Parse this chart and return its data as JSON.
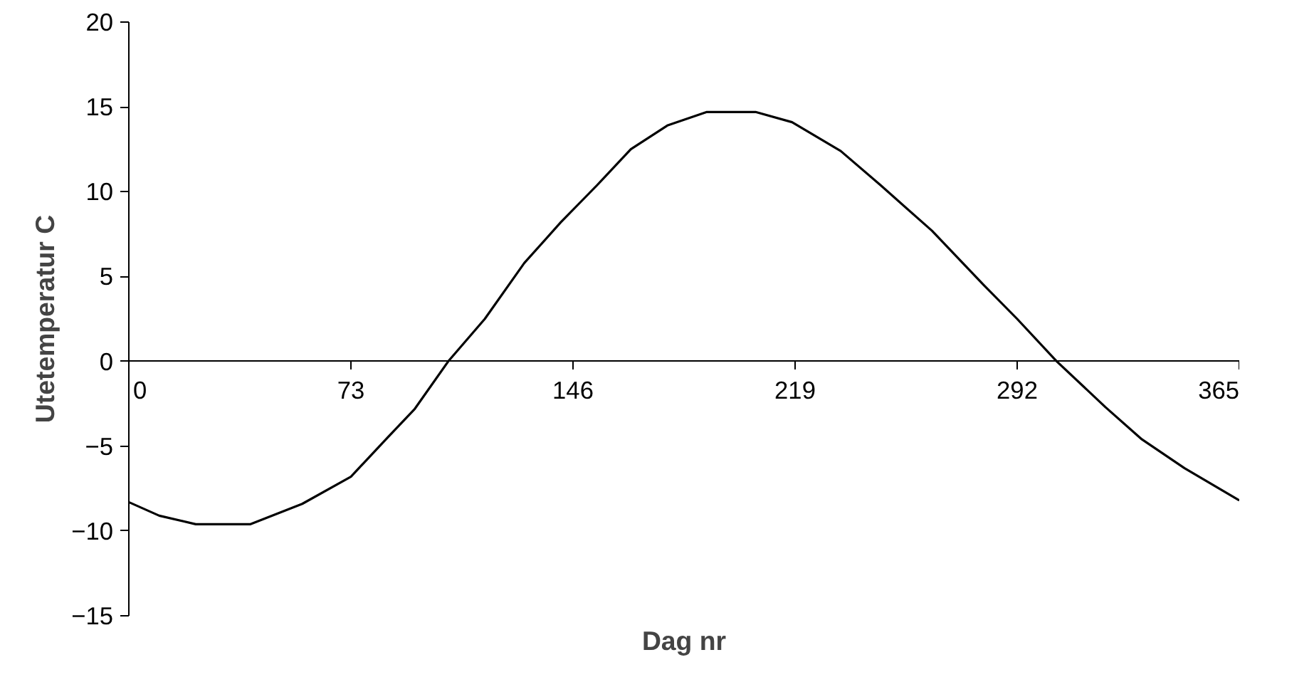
{
  "chart_data": {
    "type": "line",
    "xlabel": "Dag nr",
    "ylabel": "Utetemperatur C",
    "x": [
      0,
      10,
      22,
      40,
      57,
      73,
      85,
      94,
      105,
      117,
      130,
      142,
      154,
      165,
      177,
      190,
      206,
      218,
      234,
      247,
      264,
      281,
      292,
      305,
      321,
      333,
      347,
      365
    ],
    "series": [
      {
        "color": "#000000",
        "values": [
          -8.3,
          -9.1,
          -9.6,
          -9.6,
          -8.4,
          -6.8,
          -4.5,
          -2.8,
          0,
          2.5,
          5.8,
          8.2,
          10.4,
          12.5,
          13.9,
          14.7,
          14.7,
          14.1,
          12.4,
          10.4,
          7.7,
          4.5,
          2.5,
          0,
          -2.7,
          -4.6,
          -6.3,
          -8.2
        ]
      }
    ],
    "xlim": [
      0,
      365
    ],
    "ylim": [
      -15,
      20
    ],
    "xticks": [
      0,
      73,
      146,
      219,
      292,
      365
    ],
    "yticks": [
      -15,
      -10,
      -5,
      0,
      5,
      10,
      15,
      20
    ],
    "grid": false,
    "marker": "none",
    "line_style": "solid"
  }
}
